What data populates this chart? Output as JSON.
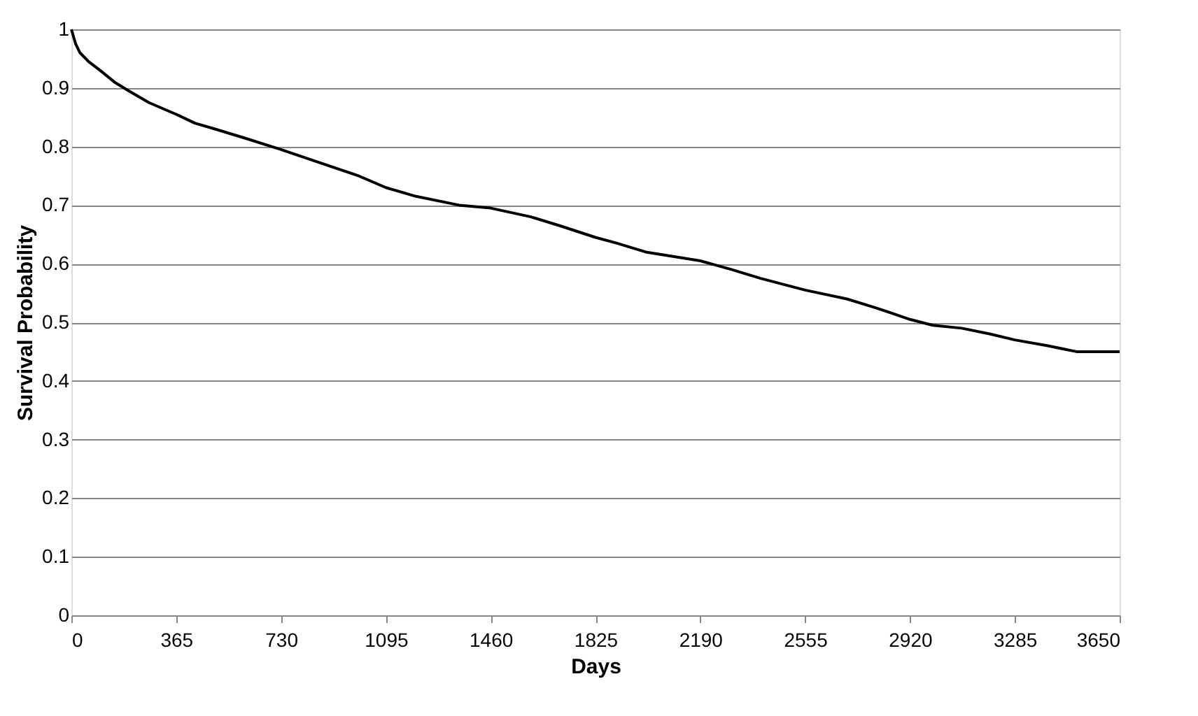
{
  "chart_data": {
    "type": "line",
    "xlabel": "Days",
    "ylabel": "Survival Probability",
    "x": [
      0,
      15,
      30,
      60,
      100,
      150,
      200,
      270,
      365,
      430,
      500,
      600,
      730,
      850,
      1000,
      1095,
      1200,
      1350,
      1460,
      1600,
      1700,
      1825,
      1900,
      2000,
      2190,
      2300,
      2400,
      2555,
      2700,
      2800,
      2920,
      3000,
      3100,
      3200,
      3285,
      3400,
      3500,
      3600,
      3650
    ],
    "series": [
      {
        "color": "#000000",
        "values": [
          1.0,
          0.975,
          0.96,
          0.945,
          0.93,
          0.91,
          0.895,
          0.875,
          0.855,
          0.84,
          0.83,
          0.815,
          0.795,
          0.775,
          0.75,
          0.73,
          0.715,
          0.7,
          0.695,
          0.68,
          0.665,
          0.645,
          0.635,
          0.62,
          0.605,
          0.59,
          0.575,
          0.555,
          0.54,
          0.525,
          0.505,
          0.495,
          0.49,
          0.48,
          0.47,
          0.46,
          0.45,
          0.45,
          0.45
        ]
      }
    ],
    "xlim": [
      0,
      3650
    ],
    "xticks": [
      0,
      365,
      730,
      1095,
      1460,
      1825,
      2190,
      2555,
      2920,
      3285,
      3650
    ],
    "ylim": [
      0,
      1
    ],
    "yticks": [
      0,
      0.1,
      0.2,
      0.3,
      0.4,
      0.5,
      0.6,
      0.7,
      0.8,
      0.9,
      1
    ],
    "grid": "y",
    "line_style": "solid",
    "marker": "none"
  }
}
